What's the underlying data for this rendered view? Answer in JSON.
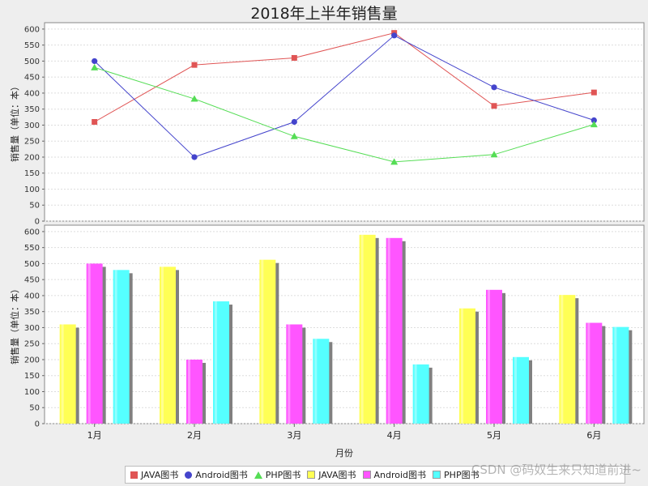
{
  "title": "2018年上半年销售量",
  "watermark": "CSDN @码奴生来只知道前进~",
  "colors": {
    "java_line": "#e05555",
    "android_line": "#4444cc",
    "php_line": "#55dd55",
    "java_bar": "#ffff55",
    "android_bar": "#ff55ff",
    "php_bar": "#55ffff",
    "bar_shadow": "#808080",
    "plot_bg": "#ffffff",
    "gridline": "#dddddd"
  },
  "chart_data": [
    {
      "type": "line",
      "categories": [
        "1月",
        "2月",
        "3月",
        "4月",
        "5月",
        "6月"
      ],
      "ylabel": "销售量（单位：本）",
      "xlabel": "",
      "ylim": [
        0,
        620
      ],
      "yticks": [
        0,
        50,
        100,
        150,
        200,
        250,
        300,
        350,
        400,
        450,
        500,
        550,
        600
      ],
      "grid": true,
      "series": [
        {
          "name": "JAVA图书",
          "marker": "square",
          "values": [
            310,
            488,
            510,
            588,
            360,
            402
          ]
        },
        {
          "name": "Android图书",
          "marker": "circle",
          "values": [
            500,
            200,
            310,
            580,
            418,
            315
          ]
        },
        {
          "name": "PHP图书",
          "marker": "triangle",
          "values": [
            480,
            382,
            265,
            185,
            208,
            302
          ]
        }
      ]
    },
    {
      "type": "bar",
      "categories": [
        "1月",
        "2月",
        "3月",
        "4月",
        "5月",
        "6月"
      ],
      "ylabel": "销售量（单位：本）",
      "xlabel": "月份",
      "ylim": [
        0,
        620
      ],
      "yticks": [
        0,
        50,
        100,
        150,
        200,
        250,
        300,
        350,
        400,
        450,
        500,
        550,
        600
      ],
      "grid": true,
      "series": [
        {
          "name": "JAVA图书",
          "values": [
            310,
            490,
            512,
            590,
            360,
            402
          ]
        },
        {
          "name": "Android图书",
          "values": [
            500,
            200,
            310,
            580,
            418,
            315
          ]
        },
        {
          "name": "PHP图书",
          "values": [
            480,
            382,
            265,
            185,
            208,
            302
          ]
        }
      ]
    }
  ],
  "legend": [
    {
      "label": "JAVA图书",
      "shape": "square",
      "color": "#e05555"
    },
    {
      "label": "Android图书",
      "shape": "circle",
      "color": "#4444cc"
    },
    {
      "label": "PHP图书",
      "shape": "tri",
      "color": "#55dd55"
    },
    {
      "label": "JAVA图书",
      "shape": "sq",
      "color": "#ffff55"
    },
    {
      "label": "Android图书",
      "shape": "sq",
      "color": "#ff55ff"
    },
    {
      "label": "PHP图书",
      "shape": "sq",
      "color": "#55ffff"
    }
  ]
}
